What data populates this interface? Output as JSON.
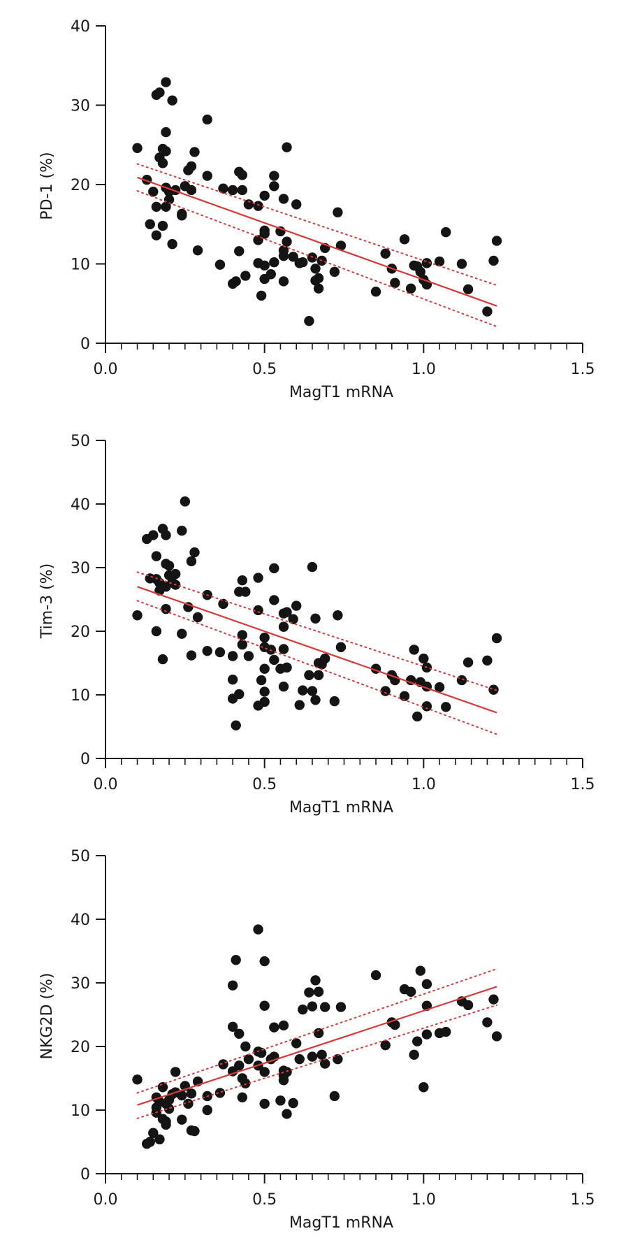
{
  "chart_data": [
    {
      "type": "scatter",
      "xlabel": "MagT1 mRNA",
      "ylabel": "PD-1 (%)",
      "xlim": [
        0,
        1.5
      ],
      "ylim": [
        0,
        40
      ],
      "x_ticks": [
        "0.0",
        "0.5",
        "1.0",
        "1.5"
      ],
      "y_ticks": [
        "0",
        "10",
        "20",
        "30",
        "40"
      ],
      "fit_line": {
        "x": [
          0.1,
          1.23
        ],
        "y": [
          20.9,
          4.7
        ],
        "color": "#d83a3a"
      },
      "ci_upper": {
        "x": [
          0.1,
          1.23
        ],
        "y": [
          22.6,
          7.3
        ]
      },
      "ci_lower": {
        "x": [
          0.1,
          1.23
        ],
        "y": [
          19.2,
          2.1
        ]
      },
      "points": [
        [
          0.1,
          24.6
        ],
        [
          0.13,
          20.6
        ],
        [
          0.14,
          15.0
        ],
        [
          0.15,
          19.1
        ],
        [
          0.16,
          31.3
        ],
        [
          0.17,
          31.6
        ],
        [
          0.17,
          23.4
        ],
        [
          0.16,
          17.2
        ],
        [
          0.16,
          13.6
        ],
        [
          0.18,
          24.5
        ],
        [
          0.18,
          22.7
        ],
        [
          0.18,
          14.8
        ],
        [
          0.19,
          32.9
        ],
        [
          0.19,
          26.6
        ],
        [
          0.19,
          24.2
        ],
        [
          0.19,
          19.6
        ],
        [
          0.19,
          17.2
        ],
        [
          0.2,
          19.1
        ],
        [
          0.2,
          18.1
        ],
        [
          0.21,
          30.6
        ],
        [
          0.21,
          12.5
        ],
        [
          0.22,
          19.3
        ],
        [
          0.24,
          16.3
        ],
        [
          0.24,
          16.1
        ],
        [
          0.25,
          19.8
        ],
        [
          0.26,
          21.8
        ],
        [
          0.27,
          22.3
        ],
        [
          0.27,
          19.3
        ],
        [
          0.28,
          24.1
        ],
        [
          0.29,
          11.7
        ],
        [
          0.32,
          28.2
        ],
        [
          0.32,
          21.1
        ],
        [
          0.36,
          9.9
        ],
        [
          0.37,
          19.5
        ],
        [
          0.4,
          19.3
        ],
        [
          0.4,
          7.5
        ],
        [
          0.41,
          7.8
        ],
        [
          0.42,
          21.6
        ],
        [
          0.42,
          11.6
        ],
        [
          0.43,
          21.2
        ],
        [
          0.43,
          19.3
        ],
        [
          0.44,
          8.5
        ],
        [
          0.45,
          17.5
        ],
        [
          0.48,
          17.3
        ],
        [
          0.48,
          13.0
        ],
        [
          0.48,
          10.1
        ],
        [
          0.49,
          6.0
        ],
        [
          0.5,
          18.6
        ],
        [
          0.5,
          14.2
        ],
        [
          0.5,
          13.8
        ],
        [
          0.5,
          9.8
        ],
        [
          0.5,
          8.1
        ],
        [
          0.52,
          8.7
        ],
        [
          0.53,
          21.1
        ],
        [
          0.53,
          19.8
        ],
        [
          0.53,
          10.2
        ],
        [
          0.55,
          14.1
        ],
        [
          0.56,
          18.2
        ],
        [
          0.56,
          11.7
        ],
        [
          0.56,
          11.0
        ],
        [
          0.56,
          7.8
        ],
        [
          0.57,
          24.7
        ],
        [
          0.57,
          12.8
        ],
        [
          0.59,
          10.9
        ],
        [
          0.6,
          17.5
        ],
        [
          0.61,
          10.1
        ],
        [
          0.62,
          10.2
        ],
        [
          0.64,
          2.8
        ],
        [
          0.65,
          10.8
        ],
        [
          0.66,
          9.4
        ],
        [
          0.66,
          7.9
        ],
        [
          0.67,
          6.9
        ],
        [
          0.67,
          8.2
        ],
        [
          0.68,
          10.4
        ],
        [
          0.69,
          12.0
        ],
        [
          0.72,
          9.0
        ],
        [
          0.73,
          16.5
        ],
        [
          0.74,
          12.3
        ],
        [
          0.85,
          6.5
        ],
        [
          0.88,
          11.3
        ],
        [
          0.9,
          9.4
        ],
        [
          0.91,
          7.6
        ],
        [
          0.94,
          13.1
        ],
        [
          0.96,
          6.9
        ],
        [
          0.97,
          9.8
        ],
        [
          0.98,
          9.7
        ],
        [
          0.99,
          9.0
        ],
        [
          1.0,
          8.0
        ],
        [
          1.01,
          10.1
        ],
        [
          1.01,
          7.4
        ],
        [
          1.05,
          10.3
        ],
        [
          1.07,
          14.0
        ],
        [
          1.12,
          10.0
        ],
        [
          1.14,
          6.8
        ],
        [
          1.2,
          4.0
        ],
        [
          1.22,
          10.4
        ],
        [
          1.23,
          12.9
        ]
      ]
    },
    {
      "type": "scatter",
      "xlabel": "MagT1 mRNA",
      "ylabel": "Tim-3 (%)",
      "xlim": [
        0,
        1.5
      ],
      "ylim": [
        0,
        50
      ],
      "x_ticks": [
        "0.0",
        "0.5",
        "1.0",
        "1.5"
      ],
      "y_ticks": [
        "0",
        "10",
        "20",
        "30",
        "40",
        "50"
      ],
      "fit_line": {
        "x": [
          0.1,
          1.23
        ],
        "y": [
          27.0,
          7.2
        ],
        "color": "#d83a3a"
      },
      "ci_upper": {
        "x": [
          0.1,
          1.23
        ],
        "y": [
          29.3,
          10.7
        ]
      },
      "ci_lower": {
        "x": [
          0.1,
          1.23
        ],
        "y": [
          24.8,
          3.8
        ]
      },
      "points": [
        [
          0.1,
          22.5
        ],
        [
          0.13,
          34.5
        ],
        [
          0.14,
          28.3
        ],
        [
          0.15,
          35.1
        ],
        [
          0.16,
          31.8
        ],
        [
          0.16,
          28.2
        ],
        [
          0.16,
          20.0
        ],
        [
          0.17,
          27.6
        ],
        [
          0.17,
          26.4
        ],
        [
          0.18,
          36.1
        ],
        [
          0.18,
          15.6
        ],
        [
          0.19,
          35.1
        ],
        [
          0.19,
          30.6
        ],
        [
          0.19,
          27.0
        ],
        [
          0.19,
          23.5
        ],
        [
          0.2,
          30.3
        ],
        [
          0.2,
          28.8
        ],
        [
          0.21,
          27.7
        ],
        [
          0.22,
          29.0
        ],
        [
          0.22,
          27.3
        ],
        [
          0.24,
          35.8
        ],
        [
          0.24,
          19.6
        ],
        [
          0.25,
          40.4
        ],
        [
          0.26,
          23.8
        ],
        [
          0.27,
          31.0
        ],
        [
          0.27,
          16.2
        ],
        [
          0.28,
          32.4
        ],
        [
          0.29,
          22.2
        ],
        [
          0.32,
          25.7
        ],
        [
          0.32,
          16.9
        ],
        [
          0.36,
          16.7
        ],
        [
          0.37,
          24.3
        ],
        [
          0.4,
          16.1
        ],
        [
          0.4,
          12.4
        ],
        [
          0.4,
          9.4
        ],
        [
          0.41,
          5.2
        ],
        [
          0.42,
          26.2
        ],
        [
          0.42,
          10.1
        ],
        [
          0.43,
          28.0
        ],
        [
          0.43,
          19.4
        ],
        [
          0.43,
          17.9
        ],
        [
          0.44,
          26.2
        ],
        [
          0.45,
          16.1
        ],
        [
          0.48,
          28.4
        ],
        [
          0.48,
          23.3
        ],
        [
          0.48,
          8.3
        ],
        [
          0.49,
          12.3
        ],
        [
          0.5,
          19.0
        ],
        [
          0.5,
          17.5
        ],
        [
          0.5,
          14.1
        ],
        [
          0.5,
          10.5
        ],
        [
          0.5,
          8.9
        ],
        [
          0.52,
          17.1
        ],
        [
          0.53,
          29.9
        ],
        [
          0.53,
          24.9
        ],
        [
          0.53,
          15.5
        ],
        [
          0.55,
          14.1
        ],
        [
          0.56,
          22.8
        ],
        [
          0.56,
          17.2
        ],
        [
          0.56,
          11.3
        ],
        [
          0.56,
          20.7
        ],
        [
          0.57,
          23.0
        ],
        [
          0.57,
          14.3
        ],
        [
          0.59,
          21.9
        ],
        [
          0.6,
          24.0
        ],
        [
          0.61,
          8.4
        ],
        [
          0.62,
          10.7
        ],
        [
          0.64,
          13.1
        ],
        [
          0.65,
          30.1
        ],
        [
          0.65,
          10.6
        ],
        [
          0.66,
          22.0
        ],
        [
          0.66,
          9.2
        ],
        [
          0.67,
          15.0
        ],
        [
          0.67,
          13.1
        ],
        [
          0.68,
          14.8
        ],
        [
          0.69,
          15.7
        ],
        [
          0.72,
          9.0
        ],
        [
          0.73,
          22.5
        ],
        [
          0.74,
          17.5
        ],
        [
          0.85,
          14.1
        ],
        [
          0.88,
          10.6
        ],
        [
          0.9,
          13.1
        ],
        [
          0.91,
          12.3
        ],
        [
          0.94,
          9.8
        ],
        [
          0.96,
          12.3
        ],
        [
          0.97,
          17.1
        ],
        [
          0.98,
          6.6
        ],
        [
          0.99,
          12.0
        ],
        [
          1.0,
          15.7
        ],
        [
          1.01,
          14.3
        ],
        [
          1.01,
          11.3
        ],
        [
          1.01,
          8.2
        ],
        [
          1.05,
          11.2
        ],
        [
          1.07,
          8.1
        ],
        [
          1.12,
          12.3
        ],
        [
          1.14,
          15.1
        ],
        [
          1.2,
          15.4
        ],
        [
          1.22,
          10.8
        ],
        [
          1.23,
          18.9
        ]
      ]
    },
    {
      "type": "scatter",
      "xlabel": "MagT1 mRNA",
      "ylabel": "NKG2D (%)",
      "xlim": [
        0,
        1.5
      ],
      "ylim": [
        0,
        50
      ],
      "x_ticks": [
        "0.0",
        "0.5",
        "1.0",
        "1.5"
      ],
      "y_ticks": [
        "0",
        "10",
        "20",
        "30",
        "40",
        "50"
      ],
      "fit_line": {
        "x": [
          0.1,
          1.23
        ],
        "y": [
          10.8,
          29.4
        ],
        "color": "#d83a3a"
      },
      "ci_upper": {
        "x": [
          0.1,
          1.23
        ],
        "y": [
          12.7,
          32.2
        ]
      },
      "ci_lower": {
        "x": [
          0.1,
          1.23
        ],
        "y": [
          8.7,
          26.5
        ]
      },
      "points": [
        [
          0.1,
          14.8
        ],
        [
          0.13,
          4.7
        ],
        [
          0.14,
          5.0
        ],
        [
          0.15,
          6.4
        ],
        [
          0.16,
          12.0
        ],
        [
          0.16,
          10.4
        ],
        [
          0.16,
          9.6
        ],
        [
          0.17,
          11.3
        ],
        [
          0.17,
          5.4
        ],
        [
          0.18,
          13.6
        ],
        [
          0.18,
          8.6
        ],
        [
          0.19,
          11.0
        ],
        [
          0.19,
          7.7
        ],
        [
          0.19,
          8.2
        ],
        [
          0.2,
          11.6
        ],
        [
          0.2,
          10.2
        ],
        [
          0.21,
          12.5
        ],
        [
          0.22,
          12.8
        ],
        [
          0.22,
          16.0
        ],
        [
          0.24,
          12.3
        ],
        [
          0.24,
          8.5
        ],
        [
          0.25,
          13.8
        ],
        [
          0.26,
          11.0
        ],
        [
          0.27,
          12.6
        ],
        [
          0.27,
          6.8
        ],
        [
          0.28,
          6.7
        ],
        [
          0.29,
          14.5
        ],
        [
          0.32,
          12.2
        ],
        [
          0.32,
          10.0
        ],
        [
          0.36,
          12.7
        ],
        [
          0.37,
          17.2
        ],
        [
          0.4,
          29.6
        ],
        [
          0.4,
          23.1
        ],
        [
          0.4,
          16.1
        ],
        [
          0.41,
          33.6
        ],
        [
          0.42,
          22.0
        ],
        [
          0.42,
          17.0
        ],
        [
          0.43,
          15.0
        ],
        [
          0.43,
          12.0
        ],
        [
          0.44,
          14.2
        ],
        [
          0.44,
          20.0
        ],
        [
          0.45,
          18.0
        ],
        [
          0.48,
          38.4
        ],
        [
          0.48,
          19.2
        ],
        [
          0.48,
          17.0
        ],
        [
          0.49,
          19.0
        ],
        [
          0.5,
          33.4
        ],
        [
          0.5,
          26.4
        ],
        [
          0.5,
          11.0
        ],
        [
          0.5,
          16.0
        ],
        [
          0.52,
          18.0
        ],
        [
          0.53,
          23.0
        ],
        [
          0.53,
          18.4
        ],
        [
          0.55,
          11.5
        ],
        [
          0.56,
          23.3
        ],
        [
          0.56,
          16.2
        ],
        [
          0.56,
          15.4
        ],
        [
          0.56,
          14.7
        ],
        [
          0.57,
          9.4
        ],
        [
          0.57,
          16.0
        ],
        [
          0.59,
          11.1
        ],
        [
          0.6,
          20.5
        ],
        [
          0.61,
          18.0
        ],
        [
          0.62,
          25.8
        ],
        [
          0.64,
          28.5
        ],
        [
          0.65,
          18.4
        ],
        [
          0.65,
          26.3
        ],
        [
          0.66,
          30.4
        ],
        [
          0.67,
          28.6
        ],
        [
          0.67,
          22.1
        ],
        [
          0.68,
          18.7
        ],
        [
          0.69,
          17.3
        ],
        [
          0.69,
          26.2
        ],
        [
          0.72,
          12.2
        ],
        [
          0.73,
          18.0
        ],
        [
          0.74,
          26.2
        ],
        [
          0.85,
          31.2
        ],
        [
          0.88,
          20.2
        ],
        [
          0.9,
          23.8
        ],
        [
          0.91,
          23.4
        ],
        [
          0.94,
          29.0
        ],
        [
          0.96,
          28.6
        ],
        [
          0.97,
          18.7
        ],
        [
          0.98,
          20.8
        ],
        [
          0.99,
          31.9
        ],
        [
          1.0,
          13.6
        ],
        [
          1.01,
          29.8
        ],
        [
          1.01,
          26.4
        ],
        [
          1.01,
          21.9
        ],
        [
          1.05,
          22.1
        ],
        [
          1.07,
          22.3
        ],
        [
          1.12,
          27.1
        ],
        [
          1.14,
          26.5
        ],
        [
          1.2,
          23.8
        ],
        [
          1.22,
          27.4
        ],
        [
          1.23,
          21.6
        ]
      ]
    }
  ]
}
